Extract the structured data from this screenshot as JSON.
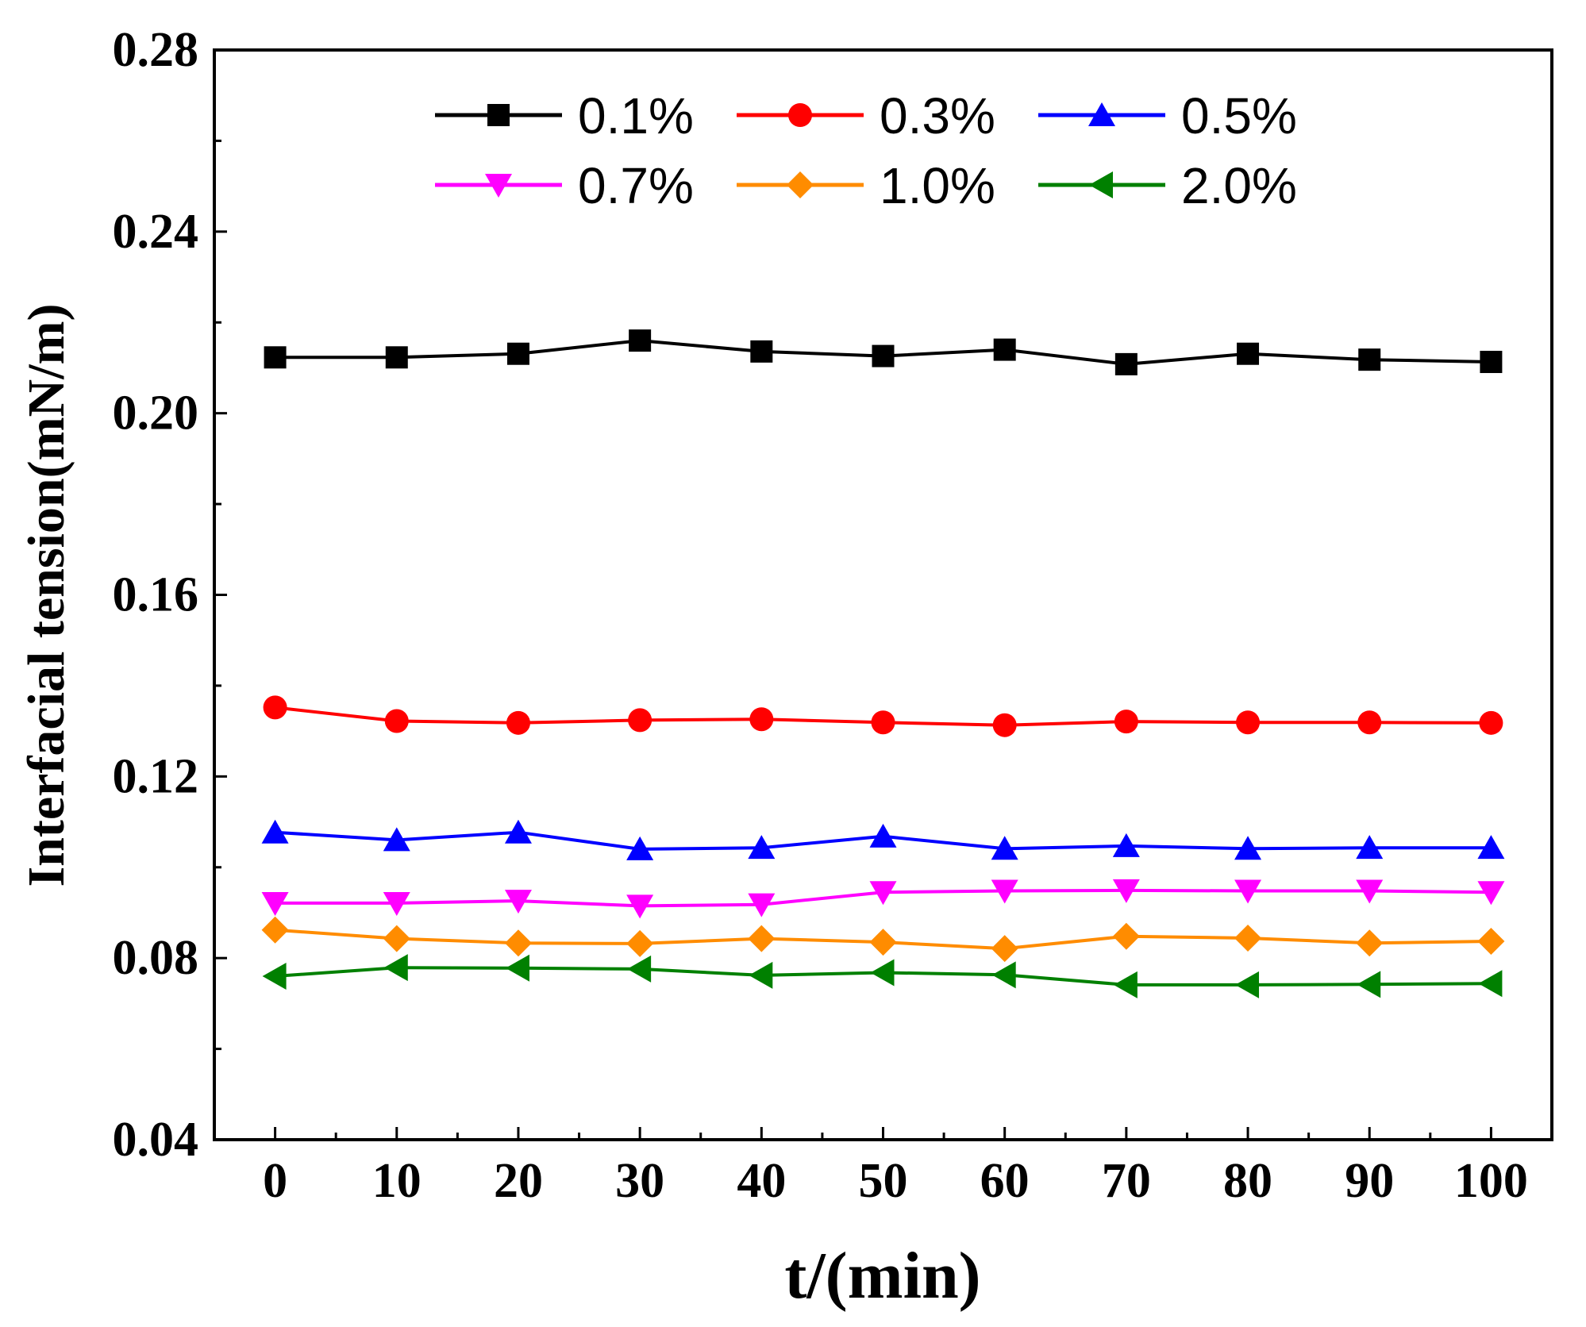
{
  "chart_data": {
    "type": "line",
    "title": "",
    "xlabel": "t/(min)",
    "ylabel": "Interfacial tension(mN/m)",
    "x": [
      0,
      10,
      20,
      30,
      40,
      50,
      60,
      70,
      80,
      90,
      100
    ],
    "xticks": [
      "0",
      "10",
      "20",
      "30",
      "40",
      "50",
      "60",
      "70",
      "80",
      "90",
      "100"
    ],
    "xlim": [
      -5,
      105
    ],
    "ylim": [
      0.04,
      0.28
    ],
    "yticks": [
      "0.04",
      "0.08",
      "0.12",
      "0.16",
      "0.20",
      "0.24",
      "0.28"
    ],
    "legend_position": "top-center",
    "series": [
      {
        "name": "0.1%",
        "color": "#000000",
        "marker": "square",
        "values": [
          0.2123,
          0.2123,
          0.2131,
          0.216,
          0.2136,
          0.2126,
          0.214,
          0.2108,
          0.2131,
          0.2118,
          0.2113
        ]
      },
      {
        "name": "0.3%",
        "color": "#ff0000",
        "marker": "circle",
        "values": [
          0.1352,
          0.1322,
          0.1318,
          0.1324,
          0.1326,
          0.1319,
          0.1313,
          0.1321,
          0.1319,
          0.1319,
          0.1318
        ]
      },
      {
        "name": "0.5%",
        "color": "#0000ff",
        "marker": "triangle-up",
        "values": [
          0.1077,
          0.106,
          0.1077,
          0.104,
          0.1043,
          0.1068,
          0.1041,
          0.1047,
          0.1041,
          0.1043,
          0.1043
        ]
      },
      {
        "name": "0.7%",
        "color": "#ff00ff",
        "marker": "triangle-down",
        "values": [
          0.0921,
          0.0921,
          0.0926,
          0.0915,
          0.0918,
          0.0945,
          0.0948,
          0.0949,
          0.0948,
          0.0948,
          0.0945
        ]
      },
      {
        "name": "1.0%",
        "color": "#ff8c00",
        "marker": "diamond",
        "values": [
          0.0862,
          0.0843,
          0.0833,
          0.0832,
          0.0843,
          0.0835,
          0.0821,
          0.0848,
          0.0844,
          0.0833,
          0.0837
        ]
      },
      {
        "name": "2.0%",
        "color": "#008000",
        "marker": "triangle-left",
        "values": [
          0.076,
          0.0779,
          0.0778,
          0.0776,
          0.0762,
          0.0768,
          0.0763,
          0.0741,
          0.0741,
          0.0742,
          0.0744
        ]
      }
    ]
  }
}
